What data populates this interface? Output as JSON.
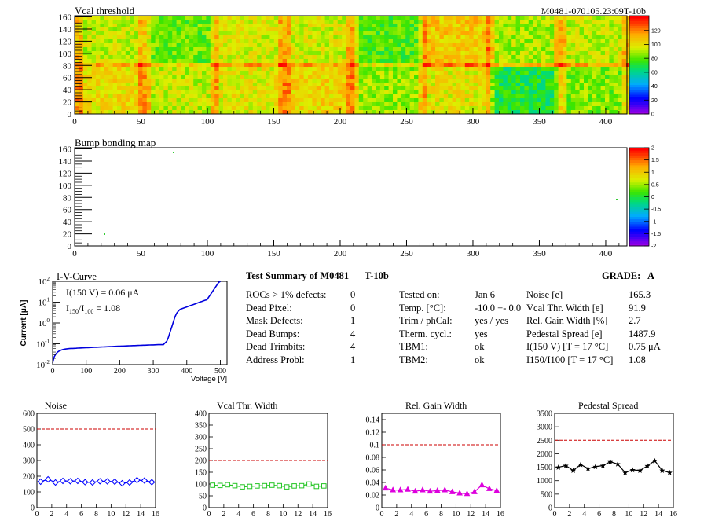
{
  "vcal_map": {
    "title": "Vcal threshold",
    "module_id": "M0481-070105.23:09T-10b",
    "y_ticks": [
      "0",
      "20",
      "40",
      "60",
      "80",
      "100",
      "120",
      "140",
      "160"
    ],
    "x_ticks": [
      "0",
      "50",
      "100",
      "150",
      "200",
      "250",
      "300",
      "350",
      "400"
    ],
    "palette_ticks": [
      "0",
      "20",
      "40",
      "60",
      "80",
      "100",
      "120"
    ]
  },
  "bump_map": {
    "title": "Bump bonding map",
    "y_ticks": [
      "0",
      "20",
      "40",
      "60",
      "80",
      "100",
      "120",
      "140",
      "160"
    ],
    "x_ticks": [
      "0",
      "50",
      "100",
      "150",
      "200",
      "250",
      "300",
      "350",
      "400"
    ],
    "palette_ticks": [
      "-2",
      "-1.5",
      "-1",
      "-0.5",
      "0",
      "0.5",
      "1",
      "1.5",
      "2"
    ]
  },
  "iv_curve": {
    "title": "I-V-Curve",
    "ylabel": "Current [μA]",
    "xlabel": "Voltage [V]",
    "x_ticks": [
      "0",
      "100",
      "200",
      "300",
      "400",
      "500"
    ],
    "ann_i150": "I(150 V) = 0.06 μA",
    "ann_ratio_value": "1.08"
  },
  "summary": {
    "title": "Test Summary of M0481",
    "tag": "T-10b",
    "grade_label": "GRADE:",
    "grade_value": "A",
    "left": [
      {
        "label": "ROCs > 1% defects:",
        "value": "0"
      },
      {
        "label": "Dead Pixel:",
        "value": "0"
      },
      {
        "label": "Mask Defects:",
        "value": "1"
      },
      {
        "label": "Dead Bumps:",
        "value": "4"
      },
      {
        "label": "Dead Trimbits:",
        "value": "4"
      },
      {
        "label": "Address Probl:",
        "value": "1"
      }
    ],
    "middle": [
      {
        "label": "Tested on:",
        "value": "Jan 6"
      },
      {
        "label": "Temp. [°C]:",
        "value": "-10.0 +- 0.0"
      },
      {
        "label": "Trim / phCal:",
        "value": "yes / yes"
      },
      {
        "label": "Therm. cycl.:",
        "value": "yes"
      },
      {
        "label": "TBM1:",
        "value": "ok"
      },
      {
        "label": "TBM2:",
        "value": "ok"
      }
    ],
    "right": [
      {
        "label": "Noise [e]",
        "value": "165.3"
      },
      {
        "label": "Vcal Thr. Width [e]",
        "value": "91.9"
      },
      {
        "label": "Rel. Gain Width [%]",
        "value": "2.7"
      },
      {
        "label": "Pedestal Spread [e]",
        "value": "1487.9"
      },
      {
        "label": "I(150 V) [T = 17 °C]",
        "value": "0.75 μA"
      },
      {
        "label": "I150/I100 [T = 17 °C]",
        "value": "1.08"
      }
    ]
  },
  "colors": {
    "noise": "#0000ff",
    "vcal_width": "#22c422",
    "gain_width": "#dd00dd",
    "pedestal": "#000000",
    "cut_line": "#cc0000",
    "iv_curve": "#0000dd"
  },
  "chart_data": [
    {
      "type": "line",
      "title": "Noise",
      "x": [
        0,
        1,
        2,
        3,
        4,
        5,
        6,
        7,
        8,
        9,
        10,
        11,
        12,
        13,
        14,
        15
      ],
      "series": [
        {
          "values": [
            165,
            180,
            160,
            170,
            168,
            170,
            162,
            160,
            168,
            167,
            165,
            155,
            160,
            175,
            172,
            162
          ]
        }
      ],
      "xlim": [
        0,
        16
      ],
      "ylim": [
        0,
        600
      ],
      "y_ticks": [
        0,
        100,
        200,
        300,
        400,
        500,
        600
      ],
      "x_ticks": [
        0,
        2,
        4,
        6,
        8,
        10,
        12,
        14,
        16
      ],
      "cut": 500
    },
    {
      "type": "line",
      "title": "Vcal Thr. Width",
      "x": [
        0,
        1,
        2,
        3,
        4,
        5,
        6,
        7,
        8,
        9,
        10,
        11,
        12,
        13,
        14,
        15
      ],
      "series": [
        {
          "values": [
            95,
            94,
            97,
            93,
            88,
            90,
            92,
            93,
            95,
            93,
            88,
            92,
            93,
            100,
            90,
            92
          ]
        }
      ],
      "xlim": [
        0,
        16
      ],
      "ylim": [
        0,
        400
      ],
      "y_ticks": [
        0,
        50,
        100,
        150,
        200,
        250,
        300,
        350,
        400
      ],
      "x_ticks": [
        0,
        2,
        4,
        6,
        8,
        10,
        12,
        14,
        16
      ],
      "cut": 200
    },
    {
      "type": "line",
      "title": "Rel. Gain Width",
      "x": [
        0,
        1,
        2,
        3,
        4,
        5,
        6,
        7,
        8,
        9,
        10,
        11,
        12,
        13,
        14,
        15
      ],
      "series": [
        {
          "values": [
            0.031,
            0.028,
            0.028,
            0.029,
            0.026,
            0.028,
            0.026,
            0.027,
            0.028,
            0.025,
            0.023,
            0.022,
            0.025,
            0.036,
            0.03,
            0.027
          ]
        }
      ],
      "xlim": [
        0,
        16
      ],
      "ylim": [
        0,
        0.15
      ],
      "y_ticks": [
        0,
        0.02,
        0.04,
        0.06,
        0.08,
        0.1,
        0.12,
        0.14
      ],
      "x_ticks": [
        0,
        2,
        4,
        6,
        8,
        10,
        12,
        14,
        16
      ],
      "cut": 0.1
    },
    {
      "type": "line",
      "title": "Pedestal Spread",
      "x": [
        0,
        1,
        2,
        3,
        4,
        5,
        6,
        7,
        8,
        9,
        10,
        11,
        12,
        13,
        14,
        15
      ],
      "series": [
        {
          "values": [
            1500,
            1560,
            1380,
            1600,
            1450,
            1520,
            1560,
            1700,
            1620,
            1300,
            1400,
            1380,
            1550,
            1740,
            1380,
            1300
          ]
        }
      ],
      "xlim": [
        0,
        16
      ],
      "ylim": [
        0,
        3500
      ],
      "y_ticks": [
        0,
        500,
        1000,
        1500,
        2000,
        2500,
        3000,
        3500
      ],
      "x_ticks": [
        0,
        2,
        4,
        6,
        8,
        10,
        12,
        14,
        16
      ],
      "cut": 2500
    }
  ]
}
